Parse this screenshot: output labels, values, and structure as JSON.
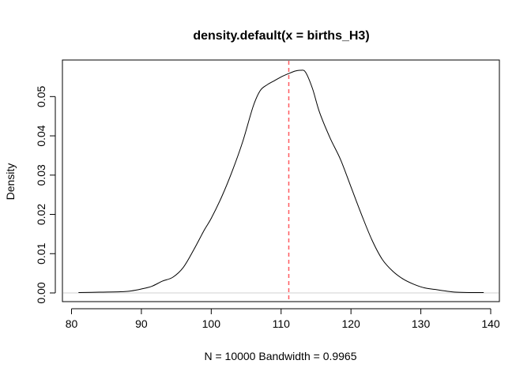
{
  "chart_data": {
    "type": "line",
    "title": "density.default(x = births_H3)",
    "xlabel": "N = 10000   Bandwidth = 0.9965",
    "ylabel": "Density",
    "xlim": [
      80,
      140
    ],
    "ylim": [
      0,
      0.057
    ],
    "x_ticks": [
      80,
      90,
      100,
      110,
      120,
      130,
      140
    ],
    "x_tick_labels": [
      "80",
      "90",
      "100",
      "110",
      "120",
      "130",
      "140"
    ],
    "y_ticks": [
      0,
      0.01,
      0.02,
      0.03,
      0.04,
      0.05
    ],
    "y_tick_labels": [
      "0.00",
      "0.01",
      "0.02",
      "0.03",
      "0.04",
      "0.05"
    ],
    "series": [
      {
        "x": [
          81.0,
          84.0,
          87.0,
          88.5,
          90.0,
          91.5,
          93.0,
          94.5,
          96.0,
          97.5,
          99.0,
          100.0,
          101.5,
          103.0,
          104.5,
          106.0,
          107.0,
          108.0,
          109.0,
          110.0,
          111.0,
          112.0,
          112.8,
          113.5,
          114.5,
          115.5,
          117.0,
          118.5,
          120.0,
          121.5,
          123.0,
          124.5,
          126.0,
          127.5,
          129.0,
          130.5,
          132.0,
          133.5,
          135.0,
          137.0,
          139.0
        ],
        "y": [
          0.0001,
          0.0002,
          0.0003,
          0.0005,
          0.001,
          0.0017,
          0.003,
          0.004,
          0.0065,
          0.011,
          0.016,
          0.019,
          0.0245,
          0.031,
          0.0385,
          0.0475,
          0.0515,
          0.053,
          0.054,
          0.055,
          0.0558,
          0.0565,
          0.0567,
          0.0562,
          0.052,
          0.046,
          0.0395,
          0.034,
          0.027,
          0.02,
          0.0135,
          0.0085,
          0.0055,
          0.0035,
          0.0022,
          0.0013,
          0.0009,
          0.0005,
          0.0002,
          0.0001,
          0.0001
        ],
        "color": "#000000"
      }
    ],
    "vline": {
      "x": 111.1,
      "color": "#ff5a5f",
      "style": "dashed"
    },
    "baseline": {
      "y": 0,
      "color": "#d0d0d0"
    },
    "grid": false
  }
}
